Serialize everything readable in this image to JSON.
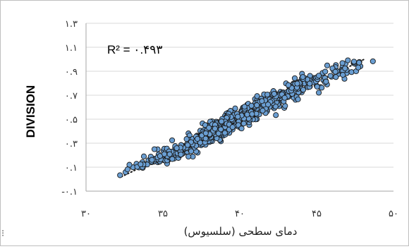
{
  "chart_data": {
    "type": "scatter",
    "xlabel": "دمای سطحی (سلسیوس)",
    "ylabel": "DIVISION",
    "annotation": "R² = ۰.۴۹۳",
    "xlim": [
      30,
      50
    ],
    "ylim": [
      -0.1,
      1.3
    ],
    "x_ticks": [
      30,
      35,
      40,
      45,
      50
    ],
    "x_tick_labels": [
      "۳۰",
      "۳۵",
      "۴۰",
      "۴۵",
      "۵۰"
    ],
    "y_ticks": [
      -0.1,
      0.1,
      0.3,
      0.5,
      0.7,
      0.9,
      1.1,
      1.3
    ],
    "y_tick_labels": [
      "-۰.۱",
      "۰.۱",
      "۰.۳",
      "۰.۵",
      "۰.۷",
      "۰.۹",
      "۱.۱",
      "۱.۳"
    ],
    "grid": "horizontal",
    "legend": "none",
    "trendline": {
      "style": "dotted",
      "x_start": 32.3,
      "x_end": 48.1,
      "y_start": 0.02,
      "y_end": 1.0
    },
    "colors": {
      "marker_fill": "#6a9ed2",
      "marker_edge": "#1a1a1a",
      "grid": "#d9d9d9",
      "trend": "#1a1a1a"
    },
    "x": [
      34.66,
      40.8,
      38.57,
      40.17,
      42.29,
      35.98,
      39.07,
      36.34,
      45.68,
      39.1,
      40.48,
      42.67,
      41.72,
      39.12,
      37.18,
      42.18,
      43.63,
      45.14,
      43.49,
      46.81,
      42.9,
      38.86,
      37.92,
      39.7,
      37.81,
      39.57,
      33.76,
      39.37,
      37.53,
      35.73,
      43.01,
      39.33,
      37.26,
      38.9,
      43.73,
      37.58,
      37.05,
      37.65,
      36.81,
      37.9,
      42.24,
      36.96,
      39.34,
      40.81,
      41.11,
      42.47,
      43.26,
      46.68,
      37.32,
      47.27,
      42.24,
      38.6,
      40.4,
      40.85,
      38.2,
      36.89,
      38.47,
      37.75,
      41.04,
      42.12,
      37.79,
      36.66,
      42.46,
      43.5,
      37.49,
      39.44,
      39.83,
      40.19,
      44.22,
      40.22,
      41.71,
      39.18,
      36.79,
      41.29,
      40.24,
      39.9,
      40.58,
      40.99,
      41.23,
      43.8,
      40.2,
      43.58,
      41.06,
      40.84,
      35.84,
      39.07,
      39.66,
      41.91,
      36.01,
      36.14,
      47.78,
      39.69,
      34.67,
      43.7,
      38.63,
      40.07,
      39.32,
      34.26,
      35.92,
      42.08,
      36.74,
      38.92,
      41.78,
      44.03,
      39.21,
      44.32,
      42.64,
      38.77,
      43.29,
      42.81,
      46.62,
      42.35,
      43.95,
      36.74,
      34.78,
      39.96,
      34.22,
      37.43,
      45.0,
      37.37,
      35.08,
      38.62,
      42.14,
      39.41,
      45.25,
      37.3,
      38.33,
      35.6,
      40.29,
      37.77,
      42.45,
      35.96,
      45.04,
      35.04,
      38.27,
      43.76,
      38.16,
      44.99,
      33.31,
      38.26,
      39.25,
      37.49,
      41.69,
      41.74,
      41.37,
      40.73,
      37.16,
      34.4,
      36.35,
      39.25,
      38.81,
      44.54,
      38.06,
      37.49,
      39.7,
      42.08,
      40.87,
      40.99,
      33.67,
      36.95,
      40.33,
      43.92,
      37.12,
      40.57,
      35.76,
      38.06,
      37.42,
      40.07,
      42.65,
      38.69,
      42.34,
      40.49,
      40.66,
      38.82,
      36.43,
      39.27,
      41.54,
      42.85,
      39.76,
      40.47,
      37.5,
      43.48,
      39.59,
      43.54,
      37.95,
      35.53,
      37.66,
      40.55,
      36.79,
      42.6,
      39.31,
      44.93,
      40.25,
      38.92,
      39.51,
      42.37,
      36.81,
      38.62,
      37.89,
      35.34,
      41.41,
      42.57,
      44.45,
      42.58,
      37.59,
      41.34,
      44.5,
      46.25,
      40.62,
      43.74,
      39.53,
      40.87,
      46.64,
      41.84,
      42.26,
      35.96,
      38.77,
      35.33,
      39.07,
      40.65,
      36.25,
      43.2,
      42.13,
      34.84,
      36.38,
      39.53,
      43.21,
      38.91,
      42.29,
      42.95,
      47.51,
      44.03,
      43.48,
      47.41,
      42.25,
      39.85,
      37.47,
      42.73,
      38.23,
      38.66,
      37.81,
      42.14,
      39.09,
      39.06,
      39.56,
      35.71,
      34.99,
      36.79,
      37.8,
      40.31,
      37.22,
      43.24,
      42.48,
      35.8,
      38.72,
      38.42,
      38.8,
      36.72,
      42.88,
      38.03,
      39.13,
      43.08,
      39.0,
      42.15,
      42.97,
      41.38,
      36.77,
      40.19,
      40.65,
      44.79,
      36.58,
      33.06,
      41.34,
      42.34,
      42.76,
      40.11,
      39.61,
      44.37,
      39.06,
      36.2,
      39.54,
      40.12,
      43.09,
      42.65,
      37.34,
      41.98,
      40.43,
      37.07,
      35.95,
      42.61,
      39.89,
      45.61,
      38.29,
      40.11,
      43.26,
      39.69,
      39.04,
      44.77,
      43.53,
      38.95,
      38.41,
      41.36,
      38.78,
      36.77,
      41.38,
      39.03,
      41.63,
      41.76,
      44.61,
      41.39,
      41.15,
      36.66,
      36.45,
      43.82,
      45.46,
      43.93,
      42.92,
      42.66,
      44.0,
      46.23,
      36.14,
      37.46,
      35.22,
      38.23,
      41.82,
      37.79,
      43.82,
      39.6,
      43.45,
      41.27,
      35.23,
      41.12,
      36.58,
      43.16,
      43.98,
      38.68,
      44.59,
      40.1,
      35.52,
      34.91,
      41.41,
      44.96,
      43.79,
      38.11,
      36.94,
      40.73,
      38.19,
      41.39,
      42.86,
      40.6,
      40.62,
      41.76,
      39.52,
      44.56,
      44.49,
      42.82,
      36.56,
      42.25,
      37.13,
      43.38,
      44.57,
      44.43,
      45.97,
      34.06,
      41.48,
      36.54,
      38.87,
      42.39,
      37.42,
      34.26,
      39.79,
      36.5,
      44.31,
      37.2,
      39.68,
      43.82,
      41.81,
      41.09,
      38.2,
      40.21,
      41.03,
      43.73,
      38.8,
      37.38,
      38.08,
      37.17,
      38.63,
      35.8,
      45.39,
      39.41,
      38.71,
      41.38,
      37.65,
      36.58,
      39.32,
      39.4,
      38.36,
      45.56,
      37.03,
      40.13,
      38.68,
      41.68,
      40.69,
      38.95,
      41.0,
      37.32,
      45.44,
      38.16,
      40.79,
      40.86,
      38.34,
      42.85,
      41.95,
      34.44,
      44.95,
      40.51,
      44.2,
      40.64,
      40.43,
      38.19,
      37.97,
      37.46,
      39.91,
      38.65,
      42.13,
      41.48,
      34.8,
      40.53,
      44.2,
      40.25,
      40.63,
      43.93,
      46.03,
      38.88,
      40.59,
      40.91,
      39.77,
      43.13,
      38.07,
      38.99,
      36.21,
      39.18,
      46.88,
      35.09,
      40.95,
      40.2,
      39.43,
      42.24,
      40.4,
      38.9,
      43.35,
      38.83,
      38.68,
      42.42,
      34.55,
      40.31,
      39.06,
      38.7,
      41.08,
      41.58,
      42.31,
      43.9,
      39.63,
      41.34,
      40.37,
      40.32,
      37.89,
      40.04,
      40.28,
      43.77,
      38.45,
      42.33,
      40.31,
      41.59,
      37.82,
      41.11,
      42.65,
      42.0,
      41.72,
      38.5,
      43.65,
      38.52,
      44.53,
      44.44,
      38.66,
      37.59,
      38.07,
      40.31,
      38.49,
      39.17,
      38.59,
      35.4,
      40.98,
      42.03,
      38.13,
      40.17,
      40.67,
      41.8,
      37.33,
      38.44,
      35.27,
      39.07,
      35.26,
      41.28,
      39.04,
      40.72,
      42.59,
      40.77,
      36.39,
      40.58,
      41.43,
      42.79,
      39.93,
      38.04,
      37.35,
      37.24,
      38.67,
      43.41,
      41.13,
      43.64,
      39.03,
      39.1,
      43.2,
      37.47,
      37.83,
      43.79,
      42.13,
      44.53,
      40.26,
      36.8,
      39.31,
      43.6,
      38.21,
      39.5,
      42.24,
      41.47,
      39.41,
      37.77,
      39.91,
      37.64,
      41.94,
      38.46,
      37.34,
      42.29,
      37.16,
      37.51,
      43.72,
      41.61,
      43.89,
      37.76,
      35.15,
      37.16,
      36.93,
      36.83,
      39.29,
      38.52,
      41.73,
      34.69,
      39.28,
      41.49,
      46.38,
      38.5,
      38.24,
      36.41,
      35.29,
      39.54,
      37.38,
      39.48,
      37.56,
      41.69,
      42.64,
      41.17,
      37.43,
      40.74,
      34.45,
      36.84,
      41.49,
      40.27,
      42.75,
      43.11,
      43.35,
      40.12,
      39.61,
      34.86,
      46.32,
      42.36,
      45.54,
      36.27,
      40.12,
      35.28,
      38.94,
      40.48,
      38.52,
      39.08,
      38.86,
      45.69,
      42.09,
      41.57,
      35.94,
      40.98,
      42.92,
      45.55,
      46.12,
      42.19,
      44.13,
      38.39,
      38.27,
      41.29,
      34.72,
      34.21,
      38.41,
      45.06,
      45.06,
      47.57,
      38.28,
      44.41,
      44.4,
      43.38,
      43.16,
      37.66,
      38.62,
      39.82,
      38.77,
      48.66,
      35.19,
      33.69,
      35.4,
      44.12,
      44.05,
      34.72,
      38.74,
      40.12,
      45.9,
      38.02,
      40.76,
      33.88,
      36.14,
      39.44,
      45.33,
      40.8,
      39.21,
      37.99,
      39.15,
      38.81,
      37.53,
      47.85,
      35.48,
      41.99,
      39.06,
      37.74,
      46.95,
      39.15,
      41.84,
      37.78,
      46.95,
      35.26,
      38.27,
      46.71,
      35.61,
      33.44,
      36.17,
      41.65,
      41.44,
      42.24,
      35.57,
      32.82,
      36.53,
      33.28,
      45.14,
      34.26,
      35.4,
      38.04,
      33.33,
      47.76,
      32.21,
      37.23,
      41.11,
      39.31,
      39.53,
      46.85,
      36.33,
      33.67,
      36.19,
      34.21,
      37.15,
      33.98,
      33.73,
      35.34,
      34.29,
      35.29,
      47.44,
      47.71,
      38.81,
      35.09,
      35.44,
      45.61,
      44.1,
      32.57,
      47.42,
      33.55,
      46.03,
      46.25,
      34.66,
      38.39,
      37.79,
      47.43,
      32.7,
      39.87,
      36.14,
      46.7,
      35.9,
      34.81,
      37.25,
      36.61,
      47.03,
      46.68,
      46.22,
      43.74,
      45.03,
      44.55
    ],
    "y": [
      0.249,
      0.539,
      0.476,
      0.55,
      0.684,
      0.181,
      0.525,
      0.218,
      0.79,
      0.442,
      0.573,
      0.659,
      0.584,
      0.446,
      0.305,
      0.622,
      0.662,
      0.721,
      0.797,
      0.837,
      0.595,
      0.421,
      0.384,
      0.59,
      0.45,
      0.497,
      0.19,
      0.44,
      0.302,
      0.172,
      0.799,
      0.452,
      0.221,
      0.433,
      0.779,
      0.465,
      0.305,
      0.297,
      0.249,
      0.421,
      0.591,
      0.297,
      0.52,
      0.531,
      0.5,
      0.611,
      0.704,
      0.936,
      0.319,
      0.893,
      0.711,
      0.441,
      0.535,
      0.56,
      0.317,
      0.326,
      0.479,
      0.451,
      0.522,
      0.669,
      0.356,
      0.382,
      0.639,
      0.68,
      0.331,
      0.431,
      0.535,
      0.566,
      0.828,
      0.498,
      0.611,
      0.473,
      0.278,
      0.593,
      0.495,
      0.438,
      0.578,
      0.556,
      0.592,
      0.808,
      0.596,
      0.842,
      0.6,
      0.552,
      0.201,
      0.501,
      0.491,
      0.625,
      0.177,
      0.201,
      0.977,
      0.506,
      0.141,
      0.687,
      0.364,
      0.426,
      0.386,
      0.17,
      0.246,
      0.71,
      0.312,
      0.363,
      0.567,
      0.725,
      0.498,
      0.8,
      0.728,
      0.316,
      0.708,
      0.725,
      0.912,
      0.534,
      0.758,
      0.365,
      0.146,
      0.46,
      0.183,
      0.404,
      0.779,
      0.353,
      0.157,
      0.361,
      0.605,
      0.463,
      0.768,
      0.317,
      0.462,
      0.324,
      0.487,
      0.404,
      0.706,
      0.206,
      0.85,
      0.237,
      0.351,
      0.747,
      0.341,
      0.836,
      0.111,
      0.42,
      0.436,
      0.283,
      0.587,
      0.693,
      0.623,
      0.501,
      0.231,
      0.146,
      0.277,
      0.554,
      0.376,
      0.806,
      0.442,
      0.306,
      0.524,
      0.662,
      0.51,
      0.668,
      0.142,
      0.188,
      0.586,
      0.812,
      0.302,
      0.59,
      0.24,
      0.387,
      0.331,
      0.434,
      0.705,
      0.382,
      0.649,
      0.622,
      0.565,
      0.444,
      0.226,
      0.431,
      0.603,
      0.658,
      0.502,
      0.483,
      0.322,
      0.79,
      0.465,
      0.759,
      0.353,
      0.184,
      0.409,
      0.628,
      0.304,
      0.659,
      0.466,
      0.84,
      0.592,
      0.373,
      0.487,
      0.625,
      0.251,
      0.377,
      0.346,
      0.159,
      0.6,
      0.609,
      0.823,
      0.64,
      0.395,
      0.601,
      0.824,
      0.951,
      0.452,
      0.772,
      0.414,
      0.552,
      0.903,
      0.631,
      0.657,
      0.238,
      0.408,
      0.16,
      0.477,
      0.595,
      0.21,
      0.775,
      0.681,
      0.172,
      0.271,
      0.513,
      0.742,
      0.463,
      0.624,
      0.611,
      0.962,
      0.84,
      0.742,
      0.968,
      0.717,
      0.501,
      0.3,
      0.702,
      0.379,
      0.368,
      0.352,
      0.619,
      0.388,
      0.466,
      0.469,
      0.221,
      0.169,
      0.248,
      0.339,
      0.502,
      0.363,
      0.697,
      0.624,
      0.263,
      0.327,
      0.42,
      0.448,
      0.303,
      0.708,
      0.31,
      0.547,
      0.726,
      0.439,
      0.698,
      0.703,
      0.589,
      0.329,
      0.542,
      0.597,
      0.808,
      0.291,
      0.099,
      0.614,
      0.65,
      0.658,
      0.57,
      0.496,
      0.775,
      0.469,
      0.261,
      0.553,
      0.568,
      0.684,
      0.667,
      0.313,
      0.611,
      0.583,
      0.277,
      0.217,
      0.675,
      0.512,
      0.817,
      0.379,
      0.568,
      0.712,
      0.45,
      0.529,
      0.845,
      0.731,
      0.437,
      0.405,
      0.587,
      0.396,
      0.302,
      0.669,
      0.475,
      0.671,
      0.58,
      0.847,
      0.628,
      0.6,
      0.188,
      0.263,
      0.722,
      0.851,
      0.774,
      0.702,
      0.679,
      0.739,
      0.934,
      0.222,
      0.344,
      0.204,
      0.428,
      0.69,
      0.376,
      0.764,
      0.49,
      0.772,
      0.541,
      0.195,
      0.659,
      0.229,
      0.686,
      0.755,
      0.423,
      0.844,
      0.514,
      0.194,
      0.173,
      0.573,
      0.816,
      0.666,
      0.321,
      0.336,
      0.524,
      0.483,
      0.672,
      0.648,
      0.475,
      0.563,
      0.619,
      0.487,
      0.772,
      0.843,
      0.699,
      0.277,
      0.633,
      0.302,
      0.712,
      0.862,
      0.767,
      0.855,
      0.157,
      0.627,
      0.335,
      0.396,
      0.642,
      0.309,
      0.141,
      0.465,
      0.259,
      0.829,
      0.32,
      0.512,
      0.725,
      0.633,
      0.638,
      0.388,
      0.502,
      0.499,
      0.755,
      0.389,
      0.345,
      0.48,
      0.356,
      0.406,
      0.276,
      0.886,
      0.422,
      0.42,
      0.645,
      0.342,
      0.294,
      0.431,
      0.57,
      0.38,
      0.897,
      0.262,
      0.56,
      0.436,
      0.552,
      0.597,
      0.459,
      0.633,
      0.359,
      0.825,
      0.428,
      0.521,
      0.498,
      0.435,
      0.704,
      0.665,
      0.171,
      0.845,
      0.594,
      0.799,
      0.496,
      0.497,
      0.416,
      0.317,
      0.366,
      0.475,
      0.448,
      0.625,
      0.61,
      0.148,
      0.529,
      0.845,
      0.551,
      0.526,
      0.794,
      0.923,
      0.411,
      0.522,
      0.602,
      0.523,
      0.712,
      0.342,
      0.451,
      0.264,
      0.528,
      0.962,
      0.254,
      0.55,
      0.518,
      0.452,
      0.725,
      0.532,
      0.466,
      0.736,
      0.454,
      0.436,
      0.675,
      0.165,
      0.548,
      0.372,
      0.328,
      0.546,
      0.707,
      0.679,
      0.81,
      0.534,
      0.649,
      0.534,
      0.587,
      0.411,
      0.514,
      0.475,
      0.753,
      0.397,
      0.606,
      0.604,
      0.633,
      0.368,
      0.589,
      0.695,
      0.637,
      0.607,
      0.402,
      0.756,
      0.461,
      0.824,
      0.811,
      0.451,
      0.348,
      0.385,
      0.475,
      0.433,
      0.396,
      0.374,
      0.185,
      0.6,
      0.64,
      0.351,
      0.528,
      0.535,
      0.706,
      0.321,
      0.466,
      0.13,
      0.448,
      0.219,
      0.614,
      0.434,
      0.557,
      0.708,
      0.53,
      0.251,
      0.506,
      0.588,
      0.716,
      0.48,
      0.366,
      0.307,
      0.327,
      0.41,
      0.712,
      0.693,
      0.772,
      0.386,
      0.515,
      0.735,
      0.36,
      0.332,
      0.78,
      0.635,
      0.77,
      0.464,
      0.243,
      0.414,
      0.794,
      0.457,
      0.503,
      0.698,
      0.62,
      0.479,
      0.287,
      0.451,
      0.382,
      0.603,
      0.442,
      0.289,
      0.674,
      0.321,
      0.366,
      0.765,
      0.631,
      0.802,
      0.343,
      0.156,
      0.278,
      0.29,
      0.309,
      0.523,
      0.395,
      0.598,
      0.165,
      0.545,
      0.628,
      0.874,
      0.341,
      0.421,
      0.256,
      0.214,
      0.49,
      0.342,
      0.499,
      0.294,
      0.59,
      0.702,
      0.641,
      0.305,
      0.563,
      0.25,
      0.233,
      0.572,
      0.506,
      0.707,
      0.691,
      0.739,
      0.539,
      0.44,
      0.165,
      0.9,
      0.691,
      0.844,
      0.268,
      0.531,
      0.157,
      0.477,
      0.539,
      0.467,
      0.464,
      0.503,
      0.948,
      0.653,
      0.621,
      0.253,
      0.61,
      0.679,
      0.807,
      0.905,
      0.735,
      0.746,
      0.453,
      0.417,
      0.644,
      0.2,
      0.167,
      0.375,
      0.834,
      0.853,
      0.9,
      0.39,
      0.827,
      0.831,
      0.761,
      0.785,
      0.344,
      0.381,
      0.545,
      0.415,
      0.983,
      0.228,
      0.094,
      0.182,
      0.836,
      0.879,
      0.206,
      0.467,
      0.423,
      0.862,
      0.372,
      0.613,
      0.122,
      0.232,
      0.519,
      0.763,
      0.543,
      0.522,
      0.428,
      0.512,
      0.475,
      0.365,
      0.942,
      0.182,
      0.644,
      0.48,
      0.307,
      0.884,
      0.463,
      0.623,
      0.339,
      0.911,
      0.255,
      0.403,
      0.903,
      0.168,
      0.097,
      0.206,
      0.657,
      0.651,
      0.712,
      0.23,
      0.12,
      0.262,
      0.128,
      0.863,
      0.148,
      0.232,
      0.375,
      0.103,
      0.972,
      0.033,
      0.351,
      0.617,
      0.456,
      0.434,
      0.924,
      0.264,
      0.101,
      0.285,
      0.188,
      0.355,
      0.123,
      0.123,
      0.206,
      0.161,
      0.192,
      0.966,
      0.931,
      0.482,
      0.209,
      0.208,
      0.814,
      0.852,
      0.058,
      0.976,
      0.124,
      0.924,
      0.852,
      0.182,
      0.421,
      0.383,
      0.98,
      0.082,
      0.521,
      0.263,
      0.87,
      0.259,
      0.193,
      0.336,
      0.285,
      0.991,
      0.968,
      0.896,
      0.797,
      0.772,
      0.797
    ]
  }
}
